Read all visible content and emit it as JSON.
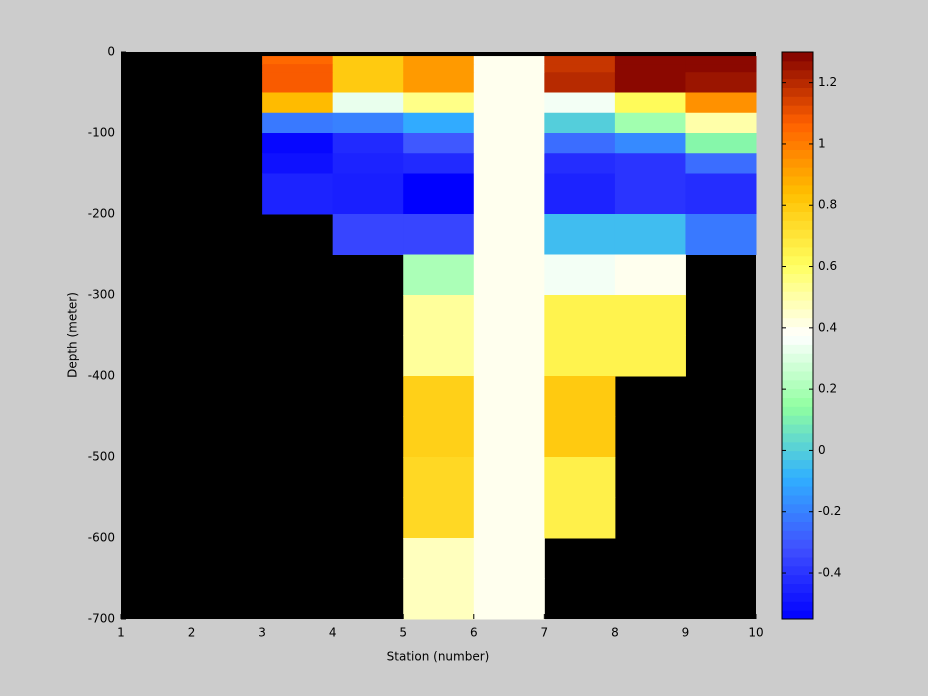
{
  "chart_data": {
    "type": "heatmap",
    "xlabel": "Station (number)",
    "ylabel": "Depth (meter)",
    "x_edges": [
      1,
      2,
      3,
      4,
      5,
      6,
      7,
      8,
      9,
      10
    ],
    "y_edges": [
      -5,
      -15,
      -25,
      -50,
      -75,
      -100,
      -125,
      -150,
      -200,
      -250,
      -300,
      -350,
      -400,
      -450,
      -500,
      -550,
      -600,
      -650,
      -700
    ],
    "values": [
      [
        null,
        null,
        1.05,
        0.8,
        0.93,
        0.4,
        1.17,
        1.28,
        1.28
      ],
      [
        null,
        null,
        1.08,
        0.8,
        0.93,
        0.4,
        1.17,
        1.28,
        1.28
      ],
      [
        null,
        null,
        1.08,
        0.8,
        0.93,
        0.4,
        1.2,
        1.28,
        1.25
      ],
      [
        null,
        null,
        0.85,
        0.33,
        0.55,
        0.4,
        0.35,
        0.62,
        0.95
      ],
      [
        null,
        null,
        -0.22,
        -0.2,
        -0.1,
        0.4,
        0.0,
        0.18,
        0.5
      ],
      [
        null,
        null,
        -0.53,
        -0.43,
        -0.3,
        0.4,
        -0.25,
        -0.18,
        0.12
      ],
      [
        null,
        null,
        -0.5,
        -0.45,
        -0.43,
        0.4,
        -0.42,
        -0.4,
        -0.25
      ],
      [
        null,
        null,
        -0.45,
        -0.46,
        -0.55,
        0.4,
        -0.45,
        -0.4,
        -0.42
      ],
      [
        null,
        null,
        null,
        -0.35,
        -0.35,
        0.4,
        -0.05,
        -0.05,
        -0.22
      ],
      [
        null,
        null,
        null,
        null,
        0.2,
        0.4,
        0.35,
        0.4,
        null
      ],
      [
        null,
        null,
        null,
        null,
        0.52,
        0.4,
        0.65,
        0.65,
        null
      ],
      [
        null,
        null,
        null,
        null,
        0.52,
        0.4,
        0.65,
        0.65,
        null
      ],
      [
        null,
        null,
        null,
        null,
        0.78,
        0.4,
        0.8,
        null,
        null
      ],
      [
        null,
        null,
        null,
        null,
        0.78,
        0.4,
        0.8,
        null,
        null
      ],
      [
        null,
        null,
        null,
        null,
        0.75,
        0.4,
        0.66,
        null,
        null
      ],
      [
        null,
        null,
        null,
        null,
        0.75,
        0.4,
        0.66,
        null,
        null
      ],
      [
        null,
        null,
        null,
        null,
        0.47,
        0.4,
        null,
        null,
        null
      ],
      [
        null,
        null,
        null,
        null,
        0.47,
        0.4,
        null,
        null,
        null
      ]
    ],
    "xlim": [
      1,
      10
    ],
    "xticks": [
      1,
      2,
      3,
      4,
      5,
      6,
      7,
      8,
      9,
      10
    ],
    "ylim": [
      -700,
      0
    ],
    "yticks": [
      0,
      -100,
      -200,
      -300,
      -400,
      -500,
      -600,
      -700
    ],
    "clim": [
      -0.55,
      1.3
    ],
    "cticks": [
      -0.4,
      -0.2,
      0,
      0.2,
      0.4,
      0.6,
      0.8,
      1,
      1.2
    ],
    "colormap": [
      "#0000ff",
      "#4050ff",
      "#30b0ff",
      "#90ffa0",
      "#ffffff",
      "#ffff60",
      "#ffc000",
      "#ff6000",
      "#800000"
    ],
    "background": "#000000"
  }
}
